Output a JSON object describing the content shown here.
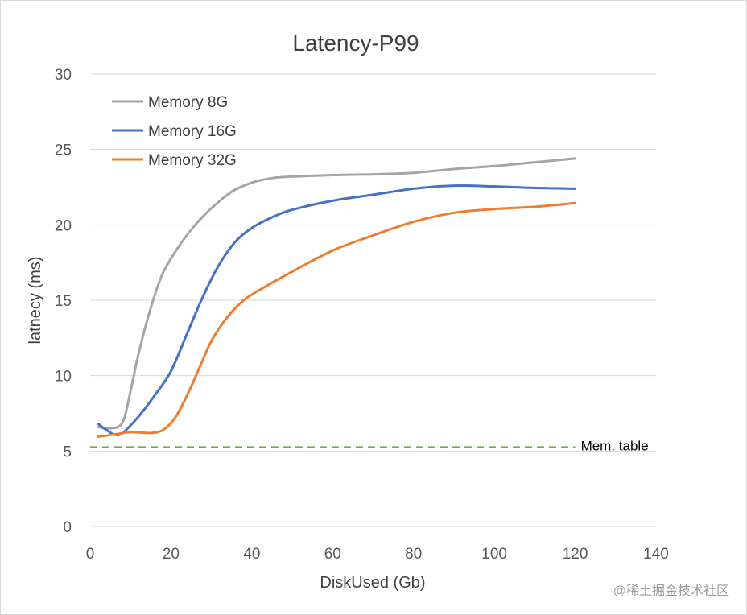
{
  "chart_data": {
    "type": "line",
    "title": "Latency-P99",
    "xlabel": "DiskUsed (Gb)",
    "ylabel": "latnecy (ms)",
    "xlim": [
      0,
      140
    ],
    "ylim": [
      0,
      30
    ],
    "xticks": [
      0,
      20,
      40,
      60,
      80,
      100,
      120,
      140
    ],
    "yticks": [
      0,
      5,
      10,
      15,
      20,
      25,
      30
    ],
    "grid": "horizontal",
    "legend_position": "top-left",
    "series": [
      {
        "name": "Memory 8G",
        "color": "#a5a5a5",
        "x": [
          2,
          5,
          8,
          10,
          12,
          15,
          18,
          22,
          26,
          30,
          35,
          40,
          45,
          50,
          60,
          70,
          80,
          90,
          100,
          110,
          120
        ],
        "y": [
          6.6,
          6.5,
          6.9,
          9.0,
          11.5,
          14.5,
          16.8,
          18.6,
          20.0,
          21.1,
          22.2,
          22.8,
          23.1,
          23.2,
          23.3,
          23.35,
          23.45,
          23.7,
          23.9,
          24.15,
          24.4
        ]
      },
      {
        "name": "Memory 16G",
        "color": "#4472c4",
        "x": [
          2,
          4,
          6,
          8,
          12,
          16,
          20,
          24,
          28,
          32,
          36,
          40,
          45,
          50,
          60,
          70,
          80,
          90,
          100,
          110,
          120
        ],
        "y": [
          6.8,
          6.4,
          6.1,
          6.2,
          7.3,
          8.7,
          10.3,
          12.8,
          15.3,
          17.4,
          18.9,
          19.8,
          20.5,
          21.0,
          21.6,
          22.0,
          22.4,
          22.6,
          22.55,
          22.45,
          22.4
        ]
      },
      {
        "name": "Memory 32G",
        "color": "#ed7d31",
        "x": [
          2,
          6,
          10,
          15,
          18,
          21,
          24,
          27,
          30,
          34,
          38,
          42,
          50,
          60,
          70,
          80,
          90,
          100,
          110,
          120
        ],
        "y": [
          5.95,
          6.1,
          6.25,
          6.2,
          6.4,
          7.2,
          8.7,
          10.5,
          12.3,
          13.9,
          15.0,
          15.7,
          16.9,
          18.3,
          19.3,
          20.2,
          20.8,
          21.05,
          21.2,
          21.45
        ]
      }
    ],
    "reference_line": {
      "label": "Mem. table",
      "y": 5.25,
      "x_range": [
        0,
        120
      ],
      "color": "#70ad47",
      "style": "dashed"
    }
  },
  "watermark": "@稀土掘金技术社区"
}
